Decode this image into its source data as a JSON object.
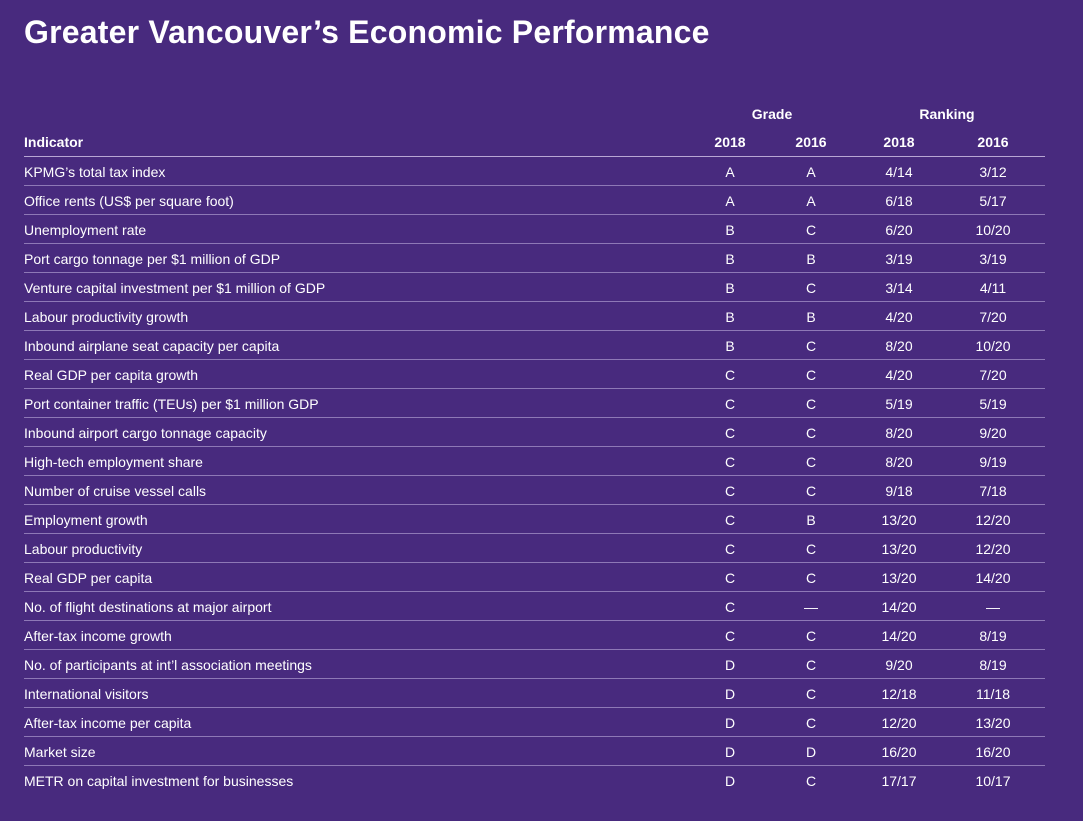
{
  "title": "Greater Vancouver’s Economic Performance",
  "group_headers": {
    "grade": "Grade",
    "ranking": "Ranking"
  },
  "columns": {
    "indicator": "Indicator",
    "grade_2018": "2018",
    "grade_2016": "2016",
    "ranking_2018": "2018",
    "ranking_2016": "2016"
  },
  "rows": [
    {
      "indicator": "KPMG’s total tax index",
      "grade_2018": "A",
      "grade_2016": "A",
      "ranking_2018": "4/14",
      "ranking_2016": "3/12"
    },
    {
      "indicator": "Office rents (US$ per square foot)",
      "grade_2018": "A",
      "grade_2016": "A",
      "ranking_2018": "6/18",
      "ranking_2016": "5/17"
    },
    {
      "indicator": "Unemployment rate",
      "grade_2018": "B",
      "grade_2016": "C",
      "ranking_2018": "6/20",
      "ranking_2016": "10/20"
    },
    {
      "indicator": "Port cargo tonnage per $1 million of GDP",
      "grade_2018": "B",
      "grade_2016": "B",
      "ranking_2018": "3/19",
      "ranking_2016": "3/19"
    },
    {
      "indicator": "Venture capital investment per $1 million of GDP",
      "grade_2018": "B",
      "grade_2016": "C",
      "ranking_2018": "3/14",
      "ranking_2016": "4/11"
    },
    {
      "indicator": "Labour productivity growth",
      "grade_2018": "B",
      "grade_2016": "B",
      "ranking_2018": "4/20",
      "ranking_2016": "7/20"
    },
    {
      "indicator": "Inbound airplane seat capacity per capita",
      "grade_2018": "B",
      "grade_2016": "C",
      "ranking_2018": "8/20",
      "ranking_2016": "10/20"
    },
    {
      "indicator": "Real GDP per capita growth",
      "grade_2018": "C",
      "grade_2016": "C",
      "ranking_2018": "4/20",
      "ranking_2016": "7/20"
    },
    {
      "indicator": "Port container traffic (TEUs) per $1 million GDP",
      "grade_2018": "C",
      "grade_2016": "C",
      "ranking_2018": "5/19",
      "ranking_2016": "5/19"
    },
    {
      "indicator": "Inbound airport cargo tonnage capacity",
      "grade_2018": "C",
      "grade_2016": "C",
      "ranking_2018": "8/20",
      "ranking_2016": "9/20"
    },
    {
      "indicator": "High-tech employment share",
      "grade_2018": "C",
      "grade_2016": "C",
      "ranking_2018": "8/20",
      "ranking_2016": "9/19"
    },
    {
      "indicator": "Number of cruise vessel calls",
      "grade_2018": "C",
      "grade_2016": "C",
      "ranking_2018": "9/18",
      "ranking_2016": "7/18"
    },
    {
      "indicator": "Employment growth",
      "grade_2018": "C",
      "grade_2016": "B",
      "ranking_2018": "13/20",
      "ranking_2016": "12/20"
    },
    {
      "indicator": "Labour productivity",
      "grade_2018": "C",
      "grade_2016": "C",
      "ranking_2018": "13/20",
      "ranking_2016": "12/20"
    },
    {
      "indicator": "Real GDP per capita",
      "grade_2018": "C",
      "grade_2016": "C",
      "ranking_2018": "13/20",
      "ranking_2016": "14/20"
    },
    {
      "indicator": "No. of flight destinations at major airport",
      "grade_2018": "C",
      "grade_2016": "—",
      "ranking_2018": "14/20",
      "ranking_2016": "—"
    },
    {
      "indicator": "After-tax income growth",
      "grade_2018": "C",
      "grade_2016": "C",
      "ranking_2018": "14/20",
      "ranking_2016": "8/19"
    },
    {
      "indicator": "No. of participants at int’l association meetings",
      "grade_2018": "D",
      "grade_2016": "C",
      "ranking_2018": "9/20",
      "ranking_2016": "8/19"
    },
    {
      "indicator": "International visitors",
      "grade_2018": "D",
      "grade_2016": "C",
      "ranking_2018": "12/18",
      "ranking_2016": "11/18"
    },
    {
      "indicator": "After-tax income per capita",
      "grade_2018": "D",
      "grade_2016": "C",
      "ranking_2018": "12/20",
      "ranking_2016": "13/20"
    },
    {
      "indicator": "Market size",
      "grade_2018": "D",
      "grade_2016": "D",
      "ranking_2018": "16/20",
      "ranking_2016": "16/20"
    },
    {
      "indicator": "METR on capital investment for businesses",
      "grade_2018": "D",
      "grade_2016": "C",
      "ranking_2018": "17/17",
      "ranking_2016": "10/17"
    }
  ]
}
